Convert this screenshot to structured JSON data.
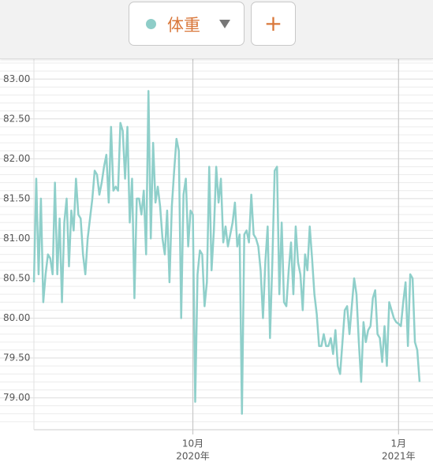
{
  "toolbar": {
    "metric": "体重",
    "add": "+"
  },
  "chart_data": {
    "type": "line",
    "series": [
      {
        "name": "体重",
        "color": "#8fcfca",
        "values": [
          80.45,
          81.75,
          80.55,
          81.5,
          80.2,
          80.55,
          80.8,
          80.75,
          80.55,
          81.7,
          80.55,
          81.25,
          80.2,
          81.2,
          81.5,
          80.65,
          81.35,
          81.1,
          81.75,
          81.3,
          81.25,
          80.8,
          80.55,
          81.0,
          81.25,
          81.5,
          81.85,
          81.8,
          81.55,
          81.7,
          81.9,
          82.05,
          81.45,
          82.4,
          81.6,
          81.65,
          81.6,
          82.45,
          82.35,
          81.75,
          82.4,
          81.2,
          81.75,
          80.25,
          81.5,
          81.5,
          81.3,
          81.6,
          80.8,
          82.85,
          81.0,
          82.2,
          81.45,
          81.65,
          81.4,
          81.0,
          80.8,
          81.35,
          80.45,
          81.4,
          81.85,
          82.25,
          82.1,
          80.0,
          81.55,
          81.75,
          80.9,
          81.35,
          81.3,
          78.95,
          80.55,
          80.85,
          80.8,
          80.15,
          80.45,
          81.9,
          80.6,
          81.1,
          81.9,
          81.45,
          81.75,
          80.95,
          81.15,
          80.9,
          81.05,
          81.2,
          81.45,
          80.9,
          81.05,
          78.8,
          81.05,
          81.1,
          80.95,
          81.55,
          81.05,
          81.0,
          80.9,
          80.6,
          80.0,
          80.7,
          81.15,
          79.75,
          80.7,
          81.85,
          81.9,
          80.3,
          81.2,
          80.2,
          80.15,
          80.6,
          80.95,
          80.3,
          81.15,
          80.7,
          80.55,
          80.1,
          80.8,
          80.6,
          81.15,
          80.75,
          80.3,
          80.05,
          79.65,
          79.65,
          79.8,
          79.65,
          79.65,
          79.75,
          79.55,
          79.85,
          79.4,
          79.3,
          79.7,
          80.1,
          80.15,
          79.8,
          80.15,
          80.5,
          80.3,
          79.7,
          79.2,
          79.95,
          79.7,
          79.85,
          79.9,
          80.25,
          80.35,
          79.8,
          79.75,
          79.45,
          79.9,
          79.4,
          80.2,
          80.1,
          80.0,
          79.95,
          79.93,
          79.9,
          80.2,
          80.45,
          79.65,
          80.55,
          80.5,
          79.7,
          79.6,
          79.2
        ]
      }
    ],
    "xlim": [
      0,
      165
    ],
    "xticks": [
      {
        "value": 68,
        "label": [
          "10月",
          "2020年"
        ]
      },
      {
        "value": 156,
        "label": [
          "1月",
          "2021年"
        ]
      }
    ],
    "ylim": [
      78.6,
      83.25
    ],
    "yticks": [
      {
        "value": 79,
        "label": "79.00"
      },
      {
        "value": 79.5,
        "label": "79.50"
      },
      {
        "value": 80,
        "label": "80.00"
      },
      {
        "value": 80.5,
        "label": "80.50"
      },
      {
        "value": 81,
        "label": "81.00"
      },
      {
        "value": 81.5,
        "label": "81.50"
      },
      {
        "value": 82,
        "label": "82.00"
      },
      {
        "value": 82.5,
        "label": "82.50"
      },
      {
        "value": 83,
        "label": "83.00"
      }
    ],
    "minor_yticks": [
      78.7,
      78.8,
      78.9,
      79.1,
      79.2,
      79.3,
      79.4,
      79.6,
      79.7,
      79.8,
      79.9,
      80.1,
      80.2,
      80.3,
      80.4,
      80.6,
      80.7,
      80.8,
      80.9,
      81.1,
      81.2,
      81.3,
      81.4,
      81.6,
      81.7,
      81.8,
      81.9,
      82.1,
      82.2,
      82.3,
      82.4,
      82.6,
      82.7,
      82.8,
      82.9,
      83.1,
      83.2
    ],
    "grid": true
  }
}
